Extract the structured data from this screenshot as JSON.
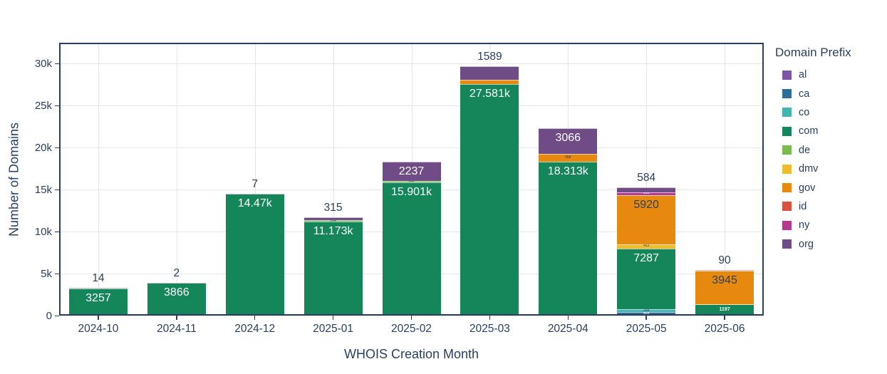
{
  "styles": {
    "text_color": "#2a3f5f",
    "grid_color": "#e6e6e6",
    "border_color": "#2a3f5f",
    "background": "#ffffff"
  },
  "chart_data": {
    "type": "bar",
    "stacked": true,
    "title": "",
    "xlabel": "WHOIS Creation Month",
    "ylabel": "Number of Domains",
    "legend_title": "Domain Prefix",
    "legend_position": "top-right",
    "grid": true,
    "ylim": [
      0,
      32500
    ],
    "yticks": [
      {
        "value": 0,
        "label": "0"
      },
      {
        "value": 5000,
        "label": "5k"
      },
      {
        "value": 10000,
        "label": "10k"
      },
      {
        "value": 15000,
        "label": "15k"
      },
      {
        "value": 20000,
        "label": "20k"
      },
      {
        "value": 25000,
        "label": "25k"
      },
      {
        "value": 30000,
        "label": "30k"
      }
    ],
    "categories": [
      "2024-10",
      "2024-11",
      "2024-12",
      "2025-01",
      "2025-02",
      "2025-03",
      "2025-04",
      "2025-05",
      "2025-06"
    ],
    "series": [
      {
        "name": "al",
        "color": "#7d57a6",
        "values": [
          0,
          0,
          0,
          0,
          0,
          0,
          0,
          0,
          0
        ]
      },
      {
        "name": "ca",
        "color": "#2d6d97",
        "values": [
          0,
          0,
          0,
          0,
          0,
          0,
          0,
          464,
          120
        ]
      },
      {
        "name": "co",
        "color": "#43b4b0",
        "values": [
          0,
          0,
          0,
          0,
          0,
          0,
          0,
          258,
          0
        ]
      },
      {
        "name": "com",
        "color": "#15855a",
        "values": [
          3257,
          3866,
          14470,
          11173,
          15901,
          27581,
          18313,
          7287,
          1197
        ]
      },
      {
        "name": "de",
        "color": "#7cba4f",
        "values": [
          0,
          0,
          0,
          204,
          158,
          0,
          0,
          0,
          0
        ]
      },
      {
        "name": "dmv",
        "color": "#eebd2d",
        "values": [
          0,
          0,
          0,
          0,
          0,
          0,
          0,
          453,
          60
        ]
      },
      {
        "name": "gov",
        "color": "#e8890f",
        "values": [
          0,
          0,
          0,
          0,
          0,
          497,
          958,
          5920,
          3945
        ]
      },
      {
        "name": "id",
        "color": "#d85140",
        "values": [
          0,
          0,
          0,
          0,
          0,
          0,
          0,
          0,
          0
        ]
      },
      {
        "name": "ny",
        "color": "#b23b90",
        "values": [
          0,
          0,
          0,
          0,
          0,
          0,
          0,
          291,
          0
        ]
      },
      {
        "name": "org",
        "color": "#6f4c85",
        "values": [
          14,
          2,
          7,
          315,
          2237,
          1589,
          3066,
          584,
          90
        ]
      }
    ],
    "inside_labels": [
      {
        "category": "2024-10",
        "series": "com",
        "text": "3257",
        "size": "normal",
        "color": "#ffffff"
      },
      {
        "category": "2024-11",
        "series": "com",
        "text": "3866",
        "size": "normal",
        "color": "#ffffff"
      },
      {
        "category": "2024-12",
        "series": "com",
        "text": "14.47k",
        "size": "normal",
        "color": "#ffffff"
      },
      {
        "category": "2025-01",
        "series": "com",
        "text": "11.173k",
        "size": "normal",
        "color": "#ffffff"
      },
      {
        "category": "2025-01",
        "series": "de",
        "text": "204",
        "size": "tiny",
        "color": "#2a3f5f"
      },
      {
        "category": "2025-02",
        "series": "com",
        "text": "15.901k",
        "size": "normal",
        "color": "#ffffff"
      },
      {
        "category": "2025-02",
        "series": "de",
        "text": "158",
        "size": "tiny",
        "color": "#2a3f5f"
      },
      {
        "category": "2025-02",
        "series": "org",
        "text": "2237",
        "size": "normal",
        "color": "#ffffff"
      },
      {
        "category": "2025-03",
        "series": "com",
        "text": "27.581k",
        "size": "normal",
        "color": "#ffffff"
      },
      {
        "category": "2025-04",
        "series": "com",
        "text": "18.313k",
        "size": "normal",
        "color": "#ffffff"
      },
      {
        "category": "2025-04",
        "series": "gov",
        "text": "958",
        "size": "tiny",
        "color": "#2a3f5f"
      },
      {
        "category": "2025-04",
        "series": "org",
        "text": "3066",
        "size": "normal",
        "color": "#ffffff"
      },
      {
        "category": "2025-05",
        "series": "ca",
        "text": "464",
        "size": "tiny",
        "color": "#ffffff"
      },
      {
        "category": "2025-05",
        "series": "co",
        "text": "258",
        "size": "tiny",
        "color": "#2a3f5f"
      },
      {
        "category": "2025-05",
        "series": "com",
        "text": "7287",
        "size": "normal",
        "color": "#ffffff"
      },
      {
        "category": "2025-05",
        "series": "dmv",
        "text": "453",
        "size": "tiny",
        "color": "#2a3f5f"
      },
      {
        "category": "2025-05",
        "series": "gov",
        "text": "5920",
        "size": "normal",
        "color": "#2a3f5f"
      },
      {
        "category": "2025-05",
        "series": "ny",
        "text": "291",
        "size": "tiny",
        "color": "#ffffff"
      },
      {
        "category": "2025-06",
        "series": "com",
        "text": "1197",
        "size": "micro",
        "color": "#ffffff"
      },
      {
        "category": "2025-06",
        "series": "gov",
        "text": "3945",
        "size": "normal",
        "color": "#2a3f5f"
      }
    ],
    "outside_labels": [
      {
        "category": "2024-10",
        "text": "14"
      },
      {
        "category": "2024-11",
        "text": "2"
      },
      {
        "category": "2024-12",
        "text": "7"
      },
      {
        "category": "2025-01",
        "text": "315"
      },
      {
        "category": "2025-03",
        "text": "1589"
      },
      {
        "category": "2025-05",
        "text": "584"
      },
      {
        "category": "2025-06",
        "text": "90"
      }
    ]
  }
}
